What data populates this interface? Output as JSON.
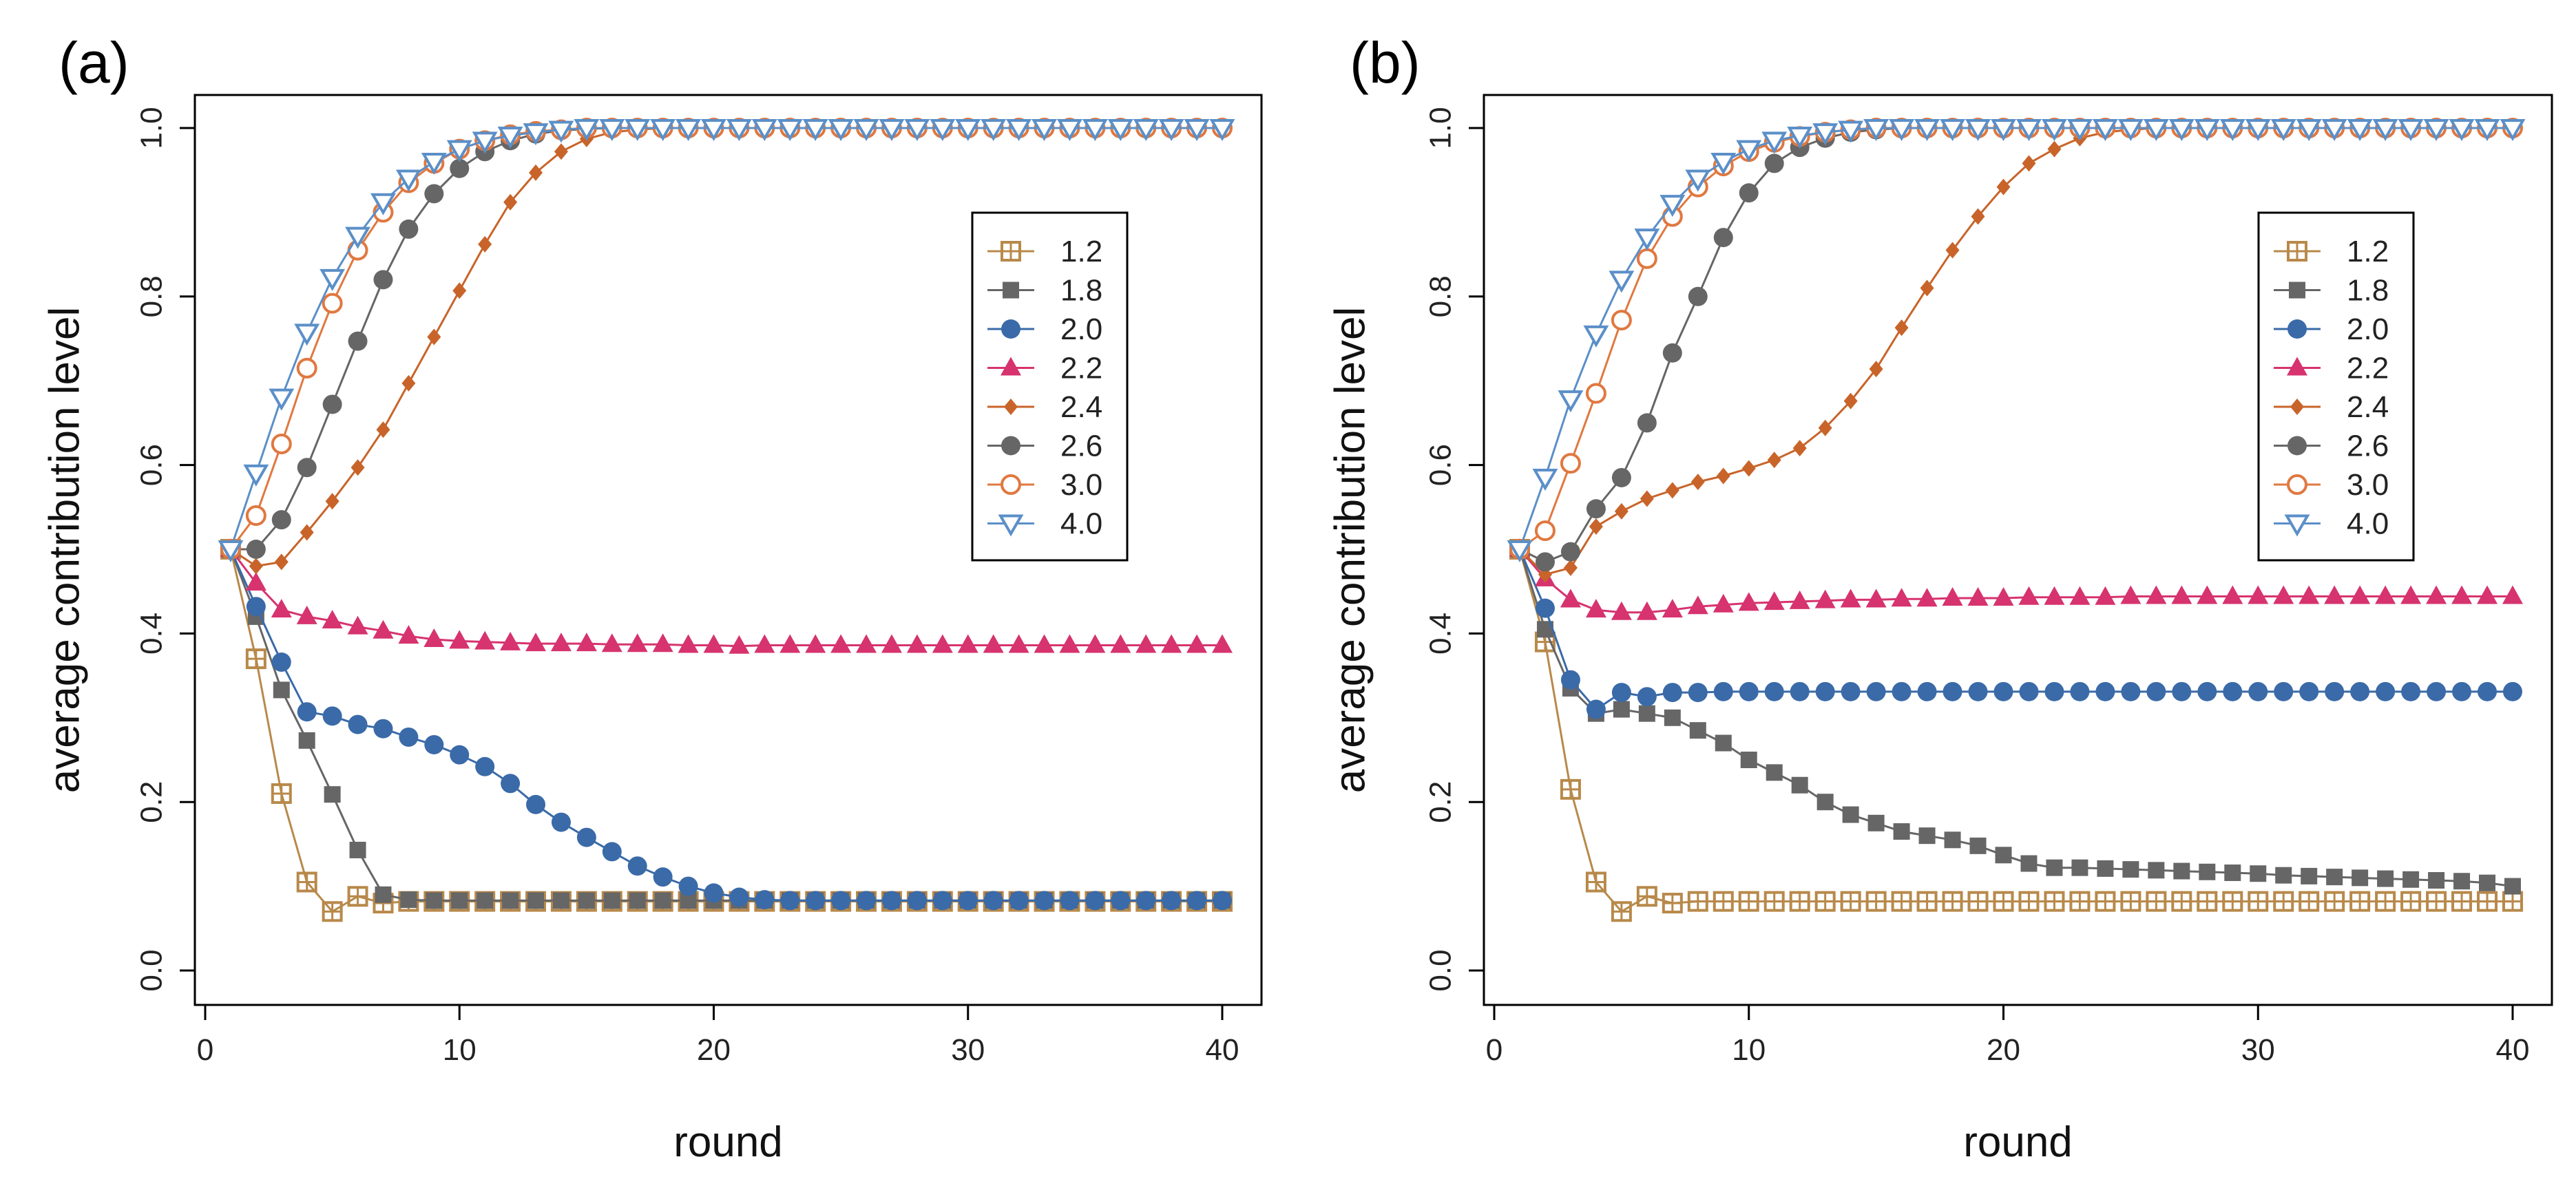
{
  "chart_data": [
    {
      "type": "line",
      "panel_label": "(a)",
      "xlabel": "round",
      "ylabel": "average contribution level",
      "xlim": [
        0,
        40
      ],
      "ylim": [
        0.0,
        1.0
      ],
      "xticks": [
        "0",
        "10",
        "20",
        "30",
        "40"
      ],
      "yticks": [
        "0.0",
        "0.2",
        "0.4",
        "0.6",
        "0.8",
        "1.0"
      ],
      "legend_position": "right",
      "x": [
        1,
        2,
        3,
        4,
        5,
        6,
        7,
        8,
        9,
        10,
        11,
        12,
        13,
        14,
        15,
        16,
        17,
        18,
        19,
        20,
        21,
        22,
        23,
        24,
        25,
        26,
        27,
        28,
        29,
        30,
        31,
        32,
        33,
        34,
        35,
        36,
        37,
        38,
        39,
        40
      ],
      "series": [
        {
          "name": "1.2",
          "color": "#b8894a",
          "marker": "square-plus",
          "values": [
            0.5,
            0.37,
            0.21,
            0.105,
            0.07,
            0.088,
            0.08,
            0.082,
            0.082,
            0.082,
            0.082,
            0.082,
            0.082,
            0.082,
            0.082,
            0.082,
            0.082,
            0.082,
            0.082,
            0.082,
            0.082,
            0.082,
            0.082,
            0.082,
            0.082,
            0.082,
            0.082,
            0.082,
            0.082,
            0.082,
            0.082,
            0.082,
            0.082,
            0.082,
            0.082,
            0.082,
            0.082,
            0.082,
            0.082,
            0.082
          ]
        },
        {
          "name": "1.8",
          "color": "#666666",
          "marker": "square",
          "values": [
            0.5,
            0.42,
            0.333,
            0.273,
            0.209,
            0.143,
            0.09,
            0.084,
            0.083,
            0.083,
            0.083,
            0.083,
            0.083,
            0.083,
            0.083,
            0.083,
            0.083,
            0.083,
            0.083,
            0.083,
            0.083,
            0.083,
            0.083,
            0.083,
            0.083,
            0.083,
            0.083,
            0.083,
            0.083,
            0.083,
            0.083,
            0.083,
            0.083,
            0.083,
            0.083,
            0.083,
            0.083,
            0.083,
            0.083,
            0.083
          ]
        },
        {
          "name": "2.0",
          "color": "#3a6aa8",
          "marker": "circle",
          "values": [
            0.5,
            0.432,
            0.366,
            0.307,
            0.302,
            0.292,
            0.287,
            0.277,
            0.268,
            0.256,
            0.242,
            0.222,
            0.197,
            0.176,
            0.158,
            0.141,
            0.124,
            0.111,
            0.1,
            0.092,
            0.087,
            0.084,
            0.083,
            0.083,
            0.083,
            0.083,
            0.083,
            0.083,
            0.083,
            0.083,
            0.083,
            0.083,
            0.083,
            0.083,
            0.083,
            0.083,
            0.083,
            0.083,
            0.083,
            0.083
          ]
        },
        {
          "name": "2.2",
          "color": "#d6336f",
          "marker": "triangle",
          "values": [
            0.5,
            0.46,
            0.428,
            0.42,
            0.415,
            0.408,
            0.403,
            0.397,
            0.393,
            0.391,
            0.39,
            0.389,
            0.388,
            0.388,
            0.388,
            0.387,
            0.387,
            0.387,
            0.386,
            0.386,
            0.385,
            0.386,
            0.386,
            0.386,
            0.386,
            0.386,
            0.386,
            0.386,
            0.386,
            0.386,
            0.386,
            0.386,
            0.386,
            0.386,
            0.386,
            0.386,
            0.386,
            0.386,
            0.386,
            0.386
          ]
        },
        {
          "name": "2.4",
          "color": "#c8642a",
          "marker": "diamond",
          "values": [
            0.5,
            0.48,
            0.485,
            0.52,
            0.557,
            0.597,
            0.642,
            0.697,
            0.752,
            0.807,
            0.862,
            0.912,
            0.947,
            0.972,
            0.987,
            0.995,
            0.998,
            1.0,
            1.0,
            1.0,
            1.0,
            1.0,
            1.0,
            1.0,
            1.0,
            1.0,
            1.0,
            1.0,
            1.0,
            1.0,
            1.0,
            1.0,
            1.0,
            1.0,
            1.0,
            1.0,
            1.0,
            1.0,
            1.0,
            1.0
          ]
        },
        {
          "name": "2.6",
          "color": "#666666",
          "marker": "circle",
          "values": [
            0.5,
            0.5,
            0.535,
            0.597,
            0.672,
            0.747,
            0.82,
            0.88,
            0.922,
            0.952,
            0.972,
            0.985,
            0.993,
            0.997,
            0.999,
            1.0,
            1.0,
            1.0,
            1.0,
            1.0,
            1.0,
            1.0,
            1.0,
            1.0,
            1.0,
            1.0,
            1.0,
            1.0,
            1.0,
            1.0,
            1.0,
            1.0,
            1.0,
            1.0,
            1.0,
            1.0,
            1.0,
            1.0,
            1.0,
            1.0
          ]
        },
        {
          "name": "3.0",
          "color": "#e07840",
          "marker": "open-circle",
          "values": [
            0.5,
            0.54,
            0.625,
            0.715,
            0.792,
            0.855,
            0.9,
            0.935,
            0.958,
            0.975,
            0.985,
            0.992,
            0.996,
            0.998,
            1.0,
            1.0,
            1.0,
            1.0,
            1.0,
            1.0,
            1.0,
            1.0,
            1.0,
            1.0,
            1.0,
            1.0,
            1.0,
            1.0,
            1.0,
            1.0,
            1.0,
            1.0,
            1.0,
            1.0,
            1.0,
            1.0,
            1.0,
            1.0,
            1.0,
            1.0
          ]
        },
        {
          "name": "4.0",
          "color": "#5b8fc8",
          "marker": "open-triangle-down",
          "values": [
            0.5,
            0.59,
            0.68,
            0.757,
            0.822,
            0.872,
            0.912,
            0.94,
            0.96,
            0.975,
            0.985,
            0.991,
            0.995,
            0.998,
            1.0,
            1.0,
            1.0,
            1.0,
            1.0,
            1.0,
            1.0,
            1.0,
            1.0,
            1.0,
            1.0,
            1.0,
            1.0,
            1.0,
            1.0,
            1.0,
            1.0,
            1.0,
            1.0,
            1.0,
            1.0,
            1.0,
            1.0,
            1.0,
            1.0,
            1.0
          ]
        }
      ]
    },
    {
      "type": "line",
      "panel_label": "(b)",
      "xlabel": "round",
      "ylabel": "average contribution level",
      "xlim": [
        0,
        40
      ],
      "ylim": [
        0.0,
        1.0
      ],
      "xticks": [
        "0",
        "10",
        "20",
        "30",
        "40"
      ],
      "yticks": [
        "0.0",
        "0.2",
        "0.4",
        "0.6",
        "0.8",
        "1.0"
      ],
      "legend_position": "right",
      "x": [
        1,
        2,
        3,
        4,
        5,
        6,
        7,
        8,
        9,
        10,
        11,
        12,
        13,
        14,
        15,
        16,
        17,
        18,
        19,
        20,
        21,
        22,
        23,
        24,
        25,
        26,
        27,
        28,
        29,
        30,
        31,
        32,
        33,
        34,
        35,
        36,
        37,
        38,
        39,
        40
      ],
      "series": [
        {
          "name": "1.2",
          "color": "#b8894a",
          "marker": "square-plus",
          "values": [
            0.5,
            0.39,
            0.215,
            0.105,
            0.07,
            0.088,
            0.08,
            0.082,
            0.082,
            0.082,
            0.082,
            0.082,
            0.082,
            0.082,
            0.082,
            0.082,
            0.082,
            0.082,
            0.082,
            0.082,
            0.082,
            0.082,
            0.082,
            0.082,
            0.082,
            0.082,
            0.082,
            0.082,
            0.082,
            0.082,
            0.082,
            0.082,
            0.082,
            0.082,
            0.082,
            0.082,
            0.082,
            0.082,
            0.082,
            0.082
          ]
        },
        {
          "name": "1.8",
          "color": "#666666",
          "marker": "square",
          "values": [
            0.5,
            0.405,
            0.335,
            0.305,
            0.31,
            0.305,
            0.3,
            0.285,
            0.27,
            0.25,
            0.235,
            0.22,
            0.2,
            0.185,
            0.175,
            0.165,
            0.16,
            0.155,
            0.148,
            0.137,
            0.127,
            0.122,
            0.122,
            0.121,
            0.12,
            0.119,
            0.118,
            0.117,
            0.116,
            0.115,
            0.113,
            0.112,
            0.111,
            0.11,
            0.109,
            0.108,
            0.107,
            0.106,
            0.104,
            0.1
          ]
        },
        {
          "name": "2.0",
          "color": "#3a6aa8",
          "marker": "circle",
          "values": [
            0.5,
            0.43,
            0.345,
            0.31,
            0.33,
            0.325,
            0.33,
            0.33,
            0.331,
            0.331,
            0.331,
            0.331,
            0.331,
            0.331,
            0.331,
            0.331,
            0.331,
            0.331,
            0.331,
            0.331,
            0.331,
            0.331,
            0.331,
            0.331,
            0.331,
            0.331,
            0.331,
            0.331,
            0.331,
            0.331,
            0.331,
            0.331,
            0.331,
            0.331,
            0.331,
            0.331,
            0.331,
            0.331,
            0.331,
            0.331
          ]
        },
        {
          "name": "2.2",
          "color": "#d6336f",
          "marker": "triangle",
          "values": [
            0.5,
            0.465,
            0.44,
            0.428,
            0.425,
            0.425,
            0.428,
            0.432,
            0.434,
            0.436,
            0.437,
            0.438,
            0.439,
            0.44,
            0.44,
            0.441,
            0.441,
            0.442,
            0.442,
            0.442,
            0.443,
            0.443,
            0.443,
            0.443,
            0.444,
            0.444,
            0.444,
            0.444,
            0.444,
            0.444,
            0.444,
            0.444,
            0.444,
            0.444,
            0.444,
            0.444,
            0.444,
            0.444,
            0.444,
            0.444
          ]
        },
        {
          "name": "2.4",
          "color": "#c8642a",
          "marker": "diamond",
          "values": [
            0.5,
            0.47,
            0.478,
            0.527,
            0.545,
            0.56,
            0.57,
            0.58,
            0.587,
            0.596,
            0.606,
            0.62,
            0.644,
            0.676,
            0.714,
            0.763,
            0.81,
            0.855,
            0.895,
            0.93,
            0.958,
            0.975,
            0.988,
            0.995,
            0.998,
            1.0,
            1.0,
            1.0,
            1.0,
            1.0,
            1.0,
            1.0,
            1.0,
            1.0,
            1.0,
            1.0,
            1.0,
            1.0,
            1.0,
            1.0
          ]
        },
        {
          "name": "2.6",
          "color": "#666666",
          "marker": "circle",
          "values": [
            0.5,
            0.485,
            0.497,
            0.548,
            0.585,
            0.65,
            0.733,
            0.8,
            0.87,
            0.923,
            0.958,
            0.977,
            0.988,
            0.995,
            0.998,
            1.0,
            1.0,
            1.0,
            1.0,
            1.0,
            1.0,
            1.0,
            1.0,
            1.0,
            1.0,
            1.0,
            1.0,
            1.0,
            1.0,
            1.0,
            1.0,
            1.0,
            1.0,
            1.0,
            1.0,
            1.0,
            1.0,
            1.0,
            1.0,
            1.0
          ]
        },
        {
          "name": "3.0",
          "color": "#e07840",
          "marker": "open-circle",
          "values": [
            0.5,
            0.522,
            0.602,
            0.685,
            0.772,
            0.845,
            0.895,
            0.93,
            0.955,
            0.972,
            0.983,
            0.99,
            0.995,
            0.998,
            1.0,
            1.0,
            1.0,
            1.0,
            1.0,
            1.0,
            1.0,
            1.0,
            1.0,
            1.0,
            1.0,
            1.0,
            1.0,
            1.0,
            1.0,
            1.0,
            1.0,
            1.0,
            1.0,
            1.0,
            1.0,
            1.0,
            1.0,
            1.0,
            1.0,
            1.0
          ]
        },
        {
          "name": "4.0",
          "color": "#5b8fc8",
          "marker": "open-triangle-down",
          "values": [
            0.5,
            0.585,
            0.678,
            0.755,
            0.82,
            0.87,
            0.91,
            0.94,
            0.96,
            0.975,
            0.985,
            0.991,
            0.995,
            0.998,
            1.0,
            1.0,
            1.0,
            1.0,
            1.0,
            1.0,
            1.0,
            1.0,
            1.0,
            1.0,
            1.0,
            1.0,
            1.0,
            1.0,
            1.0,
            1.0,
            1.0,
            1.0,
            1.0,
            1.0,
            1.0,
            1.0,
            1.0,
            1.0,
            1.0,
            1.0
          ]
        }
      ]
    }
  ]
}
